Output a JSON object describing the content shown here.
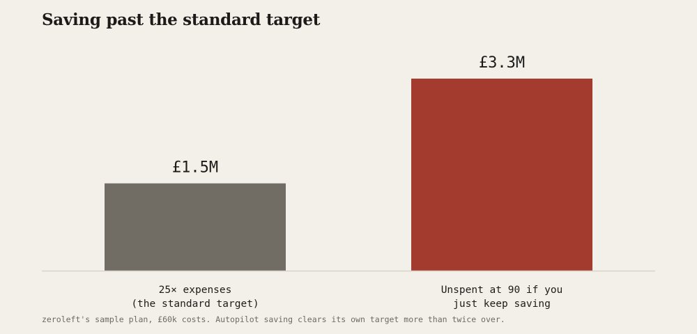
{
  "chart_data": {
    "type": "bar",
    "title": "Saving past the standard target",
    "categories": [
      [
        "25× expenses",
        "(the standard target)"
      ],
      [
        "Unspent at 90 if you",
        "just keep saving"
      ]
    ],
    "values": [
      1.5,
      3.3
    ],
    "value_labels": [
      "£1.5M",
      "£3.3M"
    ],
    "colors": [
      "#716c64",
      "#a33c2f"
    ],
    "ylim": [
      0,
      3.3
    ],
    "grid": false,
    "legend": "none",
    "xlabel": "",
    "ylabel": ""
  },
  "footnote": "zeroleft's sample plan, £60k costs. Autopilot saving clears its own target more than twice over.",
  "colors": {
    "background": "#f3f0e9",
    "baseline": "#d8d4cb",
    "text": "#1d1b19",
    "muted": "#6e6a62"
  }
}
